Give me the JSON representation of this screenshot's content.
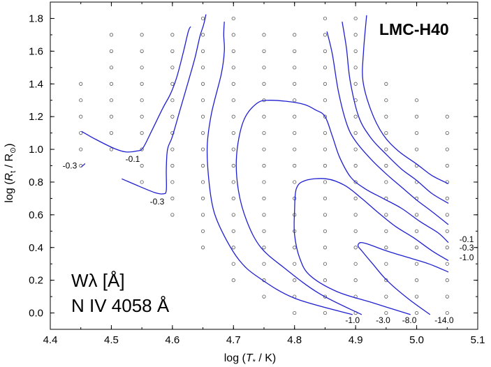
{
  "chart_data": {
    "type": "contour",
    "model_label": "LMC-H40",
    "xlabel": {
      "pre": "log (",
      "var": "T",
      "sub": "*",
      "post": " / K)"
    },
    "ylabel": {
      "pre": "log (",
      "var": "R",
      "sub": "t",
      "mid": " / R",
      "sym": "⊙",
      "post": ")"
    },
    "xlim": [
      4.4,
      5.1
    ],
    "ylim": [
      -0.1,
      1.9
    ],
    "x_ticks": [
      "4.4",
      "4.5",
      "4.6",
      "4.7",
      "4.8",
      "4.9",
      "5.0",
      "5.1"
    ],
    "y_ticks": [
      "0.0",
      "0.2",
      "0.4",
      "0.6",
      "0.8",
      "1.0",
      "1.2",
      "1.4",
      "1.6",
      "1.8"
    ],
    "line_quantity": "Wλ [Å]",
    "line_name": "N IV 4058 Å",
    "grid_columns": [
      {
        "x": 4.45,
        "y": [
          0.9,
          1.0,
          1.1,
          1.2,
          1.3,
          1.4
        ]
      },
      {
        "x": 4.5,
        "y": [
          1.0,
          1.1,
          1.2,
          1.3,
          1.4,
          1.5,
          1.6,
          1.7
        ]
      },
      {
        "x": 4.55,
        "y": [
          0.8,
          0.9,
          1.0,
          1.1,
          1.2,
          1.3,
          1.4,
          1.5,
          1.6,
          1.7
        ]
      },
      {
        "x": 4.6,
        "y": [
          0.6,
          0.7,
          0.8,
          0.9,
          1.0,
          1.1,
          1.2,
          1.3,
          1.4,
          1.5,
          1.6,
          1.7
        ]
      },
      {
        "x": 4.65,
        "y": [
          0.4,
          0.5,
          0.6,
          0.7,
          0.8,
          0.9,
          1.0,
          1.1,
          1.2,
          1.3,
          1.4,
          1.5,
          1.6,
          1.7,
          1.8
        ]
      },
      {
        "x": 4.7,
        "y": [
          0.2,
          0.3,
          0.4,
          0.5,
          0.6,
          0.7,
          0.8,
          0.9,
          1.0,
          1.1,
          1.2,
          1.3,
          1.4,
          1.5,
          1.6,
          1.7,
          1.8
        ]
      },
      {
        "x": 4.75,
        "y": [
          0.1,
          0.2,
          0.3,
          0.4,
          0.5,
          0.6,
          0.7,
          0.8,
          0.9,
          1.0,
          1.1,
          1.2,
          1.3,
          1.4,
          1.5,
          1.6,
          1.7
        ]
      },
      {
        "x": 4.8,
        "y": [
          0.0,
          0.1,
          0.2,
          0.3,
          0.4,
          0.5,
          0.6,
          0.7,
          0.8,
          0.9,
          1.0,
          1.1,
          1.2,
          1.3,
          1.4,
          1.5,
          1.6,
          1.7
        ]
      },
      {
        "x": 4.85,
        "y": [
          0.0,
          0.1,
          0.2,
          0.3,
          0.4,
          0.5,
          0.6,
          0.7,
          0.8,
          0.9,
          1.0,
          1.1,
          1.2,
          1.3,
          1.4,
          1.5,
          1.6,
          1.7,
          1.8
        ]
      },
      {
        "x": 4.9,
        "y": [
          0.0,
          0.1,
          0.2,
          0.3,
          0.4,
          0.5,
          0.6,
          0.7,
          0.8,
          0.9,
          1.0,
          1.1,
          1.2,
          1.3,
          1.4,
          1.5,
          1.6,
          1.7,
          1.8
        ]
      },
      {
        "x": 4.95,
        "y": [
          0.0,
          0.1,
          0.2,
          0.3,
          0.4,
          0.5,
          0.6,
          0.7,
          0.8,
          0.9,
          1.0,
          1.1,
          1.2,
          1.3,
          1.4
        ]
      },
      {
        "x": 5.0,
        "y": [
          0.0,
          0.1,
          0.2,
          0.3,
          0.4,
          0.5,
          0.6,
          0.7,
          0.8,
          0.9,
          1.0,
          1.1,
          1.2,
          1.3
        ]
      },
      {
        "x": 5.05,
        "y": [
          0.0,
          0.1,
          0.2,
          0.3,
          0.4,
          0.5,
          0.6,
          0.7,
          0.8,
          0.9,
          1.0,
          1.1,
          1.2
        ]
      }
    ],
    "contours": [
      {
        "label": "-0.3",
        "points": [
          [
            4.451,
            0.893
          ],
          [
            4.457,
            0.913
          ]
        ]
      },
      {
        "label": "-0.1",
        "points": [
          [
            4.451,
            1.11
          ],
          [
            4.475,
            1.06
          ],
          [
            4.505,
            1.005
          ],
          [
            4.523,
            0.985
          ],
          [
            4.542,
            0.99
          ],
          [
            4.552,
            1.01
          ],
          [
            4.567,
            1.12
          ],
          [
            4.584,
            1.25
          ],
          [
            4.597,
            1.34
          ],
          [
            4.607,
            1.44
          ],
          [
            4.617,
            1.58
          ],
          [
            4.626,
            1.72
          ],
          [
            4.63,
            1.75
          ]
        ]
      },
      {
        "label": "-0.3",
        "points": [
          [
            4.517,
            0.82
          ],
          [
            4.545,
            0.775
          ],
          [
            4.571,
            0.736
          ],
          [
            4.585,
            0.728
          ],
          [
            4.59,
            0.75
          ],
          [
            4.59,
            0.88
          ],
          [
            4.592,
            1.0
          ],
          [
            4.6,
            1.08
          ],
          [
            4.614,
            1.26
          ],
          [
            4.628,
            1.44
          ],
          [
            4.637,
            1.56
          ],
          [
            4.645,
            1.69
          ],
          [
            4.651,
            1.76
          ],
          [
            4.655,
            1.825
          ]
        ]
      },
      {
        "label": "-1.0",
        "points": [
          [
            4.895,
            -0.01
          ],
          [
            4.8,
            0.09
          ],
          [
            4.74,
            0.22
          ],
          [
            4.71,
            0.32
          ],
          [
            4.685,
            0.47
          ],
          [
            4.668,
            0.62
          ],
          [
            4.66,
            0.8
          ],
          [
            4.657,
            1.02
          ],
          [
            4.664,
            1.22
          ],
          [
            4.68,
            1.46
          ],
          [
            4.685,
            1.6
          ],
          [
            4.684,
            1.7
          ],
          [
            4.685,
            1.78
          ]
        ]
      },
      {
        "label": "-3.0",
        "points": [
          [
            4.91,
            -0.01
          ],
          [
            4.84,
            0.12
          ],
          [
            4.785,
            0.27
          ],
          [
            4.745,
            0.4
          ],
          [
            4.722,
            0.56
          ],
          [
            4.708,
            0.75
          ],
          [
            4.705,
            0.96
          ],
          [
            4.716,
            1.17
          ],
          [
            4.738,
            1.28
          ],
          [
            4.762,
            1.3
          ],
          [
            4.81,
            1.28
          ],
          [
            4.835,
            1.24
          ],
          [
            4.85,
            1.2
          ],
          [
            4.862,
            1.08
          ],
          [
            4.874,
            0.95
          ],
          [
            4.892,
            0.83
          ],
          [
            4.915,
            0.76
          ],
          [
            4.945,
            0.7
          ],
          [
            4.975,
            0.64
          ],
          [
            5.005,
            0.56
          ],
          [
            5.035,
            0.49
          ],
          [
            5.052,
            0.43
          ]
        ]
      },
      {
        "label": "-8.0",
        "points": [
          [
            4.99,
            -0.01
          ],
          [
            4.93,
            0.06
          ],
          [
            4.87,
            0.13
          ],
          [
            4.825,
            0.23
          ],
          [
            4.808,
            0.34
          ],
          [
            4.8,
            0.48
          ],
          [
            4.8,
            0.62
          ],
          [
            4.803,
            0.76
          ],
          [
            4.818,
            0.81
          ],
          [
            4.852,
            0.82
          ],
          [
            4.882,
            0.78
          ],
          [
            4.91,
            0.7
          ],
          [
            4.935,
            0.62
          ],
          [
            4.965,
            0.53
          ],
          [
            4.995,
            0.46
          ],
          [
            5.025,
            0.38
          ],
          [
            5.052,
            0.32
          ]
        ]
      },
      {
        "label": "-14.0",
        "points": [
          [
            5.022,
            -0.01
          ],
          [
            4.985,
            0.09
          ],
          [
            4.951,
            0.2
          ],
          [
            4.928,
            0.3
          ],
          [
            4.91,
            0.38
          ],
          [
            4.904,
            0.41
          ],
          [
            4.908,
            0.43
          ],
          [
            4.921,
            0.42
          ],
          [
            4.95,
            0.38
          ],
          [
            4.985,
            0.34
          ],
          [
            5.02,
            0.3
          ],
          [
            5.052,
            0.25
          ]
        ]
      },
      {
        "label": "-1.0",
        "points": [
          [
            4.853,
            1.72
          ],
          [
            4.862,
            1.58
          ],
          [
            4.872,
            1.35
          ],
          [
            4.886,
            1.15
          ],
          [
            4.9,
            1.05
          ],
          [
            4.925,
            0.94
          ],
          [
            4.95,
            0.85
          ],
          [
            4.975,
            0.77
          ],
          [
            5.0,
            0.69
          ],
          [
            5.025,
            0.62
          ],
          [
            5.052,
            0.54
          ]
        ]
      },
      {
        "label": "-0.3",
        "points": [
          [
            4.878,
            1.78
          ],
          [
            4.885,
            1.62
          ],
          [
            4.891,
            1.42
          ],
          [
            4.905,
            1.2
          ],
          [
            4.925,
            1.07
          ],
          [
            4.95,
            0.97
          ],
          [
            4.975,
            0.88
          ],
          [
            5.0,
            0.81
          ],
          [
            5.025,
            0.73
          ],
          [
            5.052,
            0.67
          ]
        ]
      },
      {
        "label": "-0.1",
        "points": [
          [
            4.918,
            1.82
          ],
          [
            4.913,
            1.6
          ],
          [
            4.912,
            1.42
          ],
          [
            4.925,
            1.24
          ],
          [
            4.945,
            1.09
          ],
          [
            4.97,
            0.99
          ],
          [
            5.0,
            0.91
          ],
          [
            5.025,
            0.84
          ],
          [
            5.052,
            0.79
          ]
        ]
      }
    ],
    "contour_labels": [
      {
        "text": "-0.3",
        "at": [
          4.432,
          0.9
        ]
      },
      {
        "text": "-0.1",
        "at": [
          4.535,
          0.94
        ]
      },
      {
        "text": "-0.3",
        "at": [
          4.575,
          0.68
        ]
      },
      {
        "text": "-0.1",
        "at": [
          5.07,
          0.45
        ]
      },
      {
        "text": "-0.3",
        "at": [
          5.07,
          0.4
        ]
      },
      {
        "text": "-1.0",
        "at": [
          5.07,
          0.34
        ]
      },
      {
        "text": "-1.0",
        "at": [
          4.895,
          -0.045
        ]
      },
      {
        "text": "-3.0",
        "at": [
          4.945,
          -0.045
        ]
      },
      {
        "text": "-8.0",
        "at": [
          4.988,
          -0.045
        ]
      },
      {
        "text": "-14.0",
        "at": [
          5.045,
          -0.045
        ]
      }
    ]
  }
}
